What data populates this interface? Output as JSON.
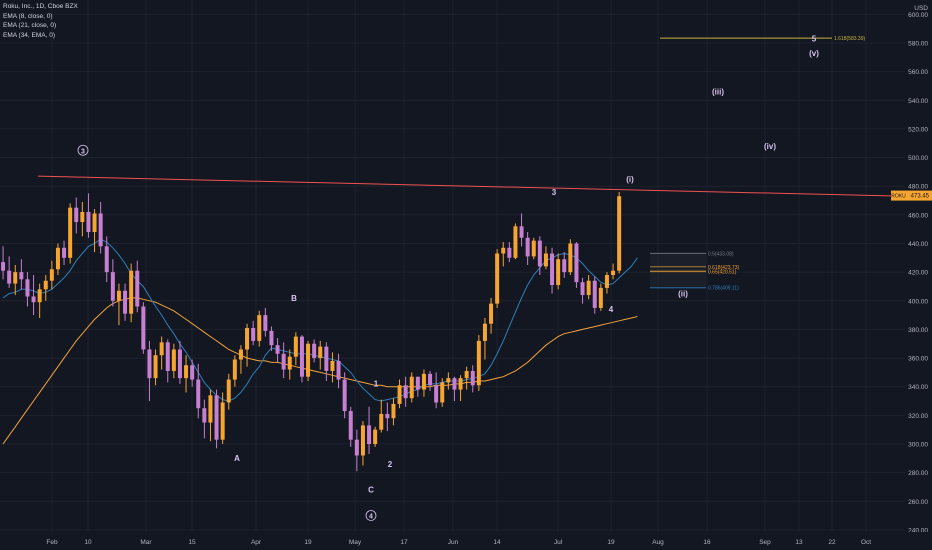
{
  "legend": {
    "title": "Roku, Inc., 1D, Cboe BZX",
    "ema1": "EMA (8, close, 0)",
    "ema2": "EMA (21, close, 0)",
    "ema3": "EMA (34, EMA, 0)"
  },
  "currency": "USD",
  "price_tag": {
    "symbol": "ROKU",
    "value": "473.45"
  },
  "colors": {
    "background": "#131722",
    "grid": "#1e222d",
    "up": "#f7a531",
    "down": "#c77fd1",
    "ema_fast": "#2f7fb8",
    "ema_slow": "#f2a33a",
    "trendline": "#ef5350",
    "fib_yellow": "#c9b33a",
    "fib_blue": "#2f7fb8",
    "wave_text": "#d7c4ef"
  },
  "chart_data": {
    "type": "candlestick",
    "title": "Roku, Inc., 1D, Cboe BZX",
    "y_axis": {
      "unit": "USD",
      "range": [
        230,
        610
      ],
      "ticks": [
        240,
        260,
        280,
        300,
        320,
        340,
        360,
        380,
        400,
        420,
        440,
        460,
        480,
        500,
        520,
        540,
        560,
        580,
        600
      ],
      "side": "right"
    },
    "x_axis": {
      "labels": [
        "Feb",
        "10",
        "Mar",
        "15",
        "Apr",
        "19",
        "May",
        "17",
        "Jun",
        "14",
        "Jul",
        "19",
        "Aug",
        "16",
        "Sep",
        "13",
        "22",
        "Oct"
      ]
    },
    "candles": [
      [
        427,
        438,
        415,
        421
      ],
      [
        421,
        431,
        409,
        412
      ],
      [
        412,
        425,
        404,
        420
      ],
      [
        420,
        429,
        408,
        415
      ],
      [
        415,
        420,
        396,
        403
      ],
      [
        403,
        418,
        390,
        399
      ],
      [
        399,
        412,
        388,
        408
      ],
      [
        408,
        418,
        400,
        414
      ],
      [
        414,
        428,
        408,
        422
      ],
      [
        422,
        440,
        418,
        437
      ],
      [
        437,
        442,
        425,
        430
      ],
      [
        430,
        468,
        426,
        465
      ],
      [
        465,
        472,
        447,
        455
      ],
      [
        455,
        469,
        445,
        462
      ],
      [
        462,
        475,
        444,
        448
      ],
      [
        448,
        464,
        434,
        461
      ],
      [
        461,
        469,
        433,
        438
      ],
      [
        438,
        445,
        413,
        420
      ],
      [
        420,
        429,
        396,
        400
      ],
      [
        400,
        412,
        383,
        407
      ],
      [
        407,
        412,
        386,
        391
      ],
      [
        391,
        426,
        385,
        421
      ],
      [
        421,
        428,
        392,
        396
      ],
      [
        396,
        399,
        363,
        366
      ],
      [
        366,
        372,
        330,
        346
      ],
      [
        346,
        366,
        341,
        362
      ],
      [
        362,
        375,
        352,
        371
      ],
      [
        371,
        373,
        343,
        351
      ],
      [
        351,
        370,
        346,
        366
      ],
      [
        366,
        372,
        342,
        346
      ],
      [
        346,
        362,
        336,
        355
      ],
      [
        355,
        359,
        340,
        345
      ],
      [
        345,
        356,
        318,
        325
      ],
      [
        325,
        331,
        304,
        315
      ],
      [
        315,
        338,
        302,
        334
      ],
      [
        334,
        338,
        297,
        303
      ],
      [
        303,
        336,
        300,
        329
      ],
      [
        329,
        349,
        324,
        345
      ],
      [
        345,
        362,
        340,
        359
      ],
      [
        359,
        369,
        349,
        366
      ],
      [
        366,
        384,
        354,
        381
      ],
      [
        381,
        386,
        369,
        372
      ],
      [
        372,
        393,
        368,
        390
      ],
      [
        390,
        395,
        375,
        379
      ],
      [
        379,
        382,
        365,
        369
      ],
      [
        369,
        374,
        357,
        363
      ],
      [
        363,
        371,
        346,
        352
      ],
      [
        352,
        366,
        345,
        361
      ],
      [
        361,
        378,
        355,
        375
      ],
      [
        375,
        376,
        343,
        347
      ],
      [
        347,
        372,
        344,
        370
      ],
      [
        370,
        373,
        357,
        360
      ],
      [
        360,
        372,
        352,
        368
      ],
      [
        368,
        371,
        344,
        351
      ],
      [
        351,
        364,
        343,
        358
      ],
      [
        358,
        363,
        339,
        345
      ],
      [
        345,
        350,
        318,
        323
      ],
      [
        323,
        326,
        298,
        303
      ],
      [
        303,
        310,
        281,
        292
      ],
      [
        292,
        316,
        285,
        313
      ],
      [
        313,
        326,
        293,
        300
      ],
      [
        300,
        312,
        298,
        310
      ],
      [
        310,
        331,
        308,
        321
      ],
      [
        321,
        329,
        309,
        318
      ],
      [
        318,
        332,
        313,
        328
      ],
      [
        328,
        345,
        325,
        341
      ],
      [
        341,
        347,
        326,
        332
      ],
      [
        332,
        350,
        329,
        347
      ],
      [
        347,
        344,
        333,
        338
      ],
      [
        338,
        352,
        333,
        349
      ],
      [
        349,
        351,
        337,
        341
      ],
      [
        341,
        350,
        325,
        329
      ],
      [
        329,
        346,
        326,
        343
      ],
      [
        343,
        350,
        338,
        346
      ],
      [
        346,
        347,
        330,
        338
      ],
      [
        338,
        348,
        330,
        346
      ],
      [
        346,
        354,
        338,
        351
      ],
      [
        351,
        355,
        336,
        341
      ],
      [
        341,
        376,
        337,
        372
      ],
      [
        372,
        388,
        359,
        384
      ],
      [
        384,
        402,
        377,
        398
      ],
      [
        398,
        436,
        395,
        433
      ],
      [
        433,
        441,
        424,
        437
      ],
      [
        437,
        441,
        427,
        430
      ],
      [
        430,
        454,
        429,
        452
      ],
      [
        452,
        461,
        438,
        444
      ],
      [
        444,
        448,
        425,
        431
      ],
      [
        431,
        444,
        429,
        442
      ],
      [
        442,
        445,
        418,
        424
      ],
      [
        424,
        438,
        422,
        433
      ],
      [
        433,
        437,
        405,
        411
      ],
      [
        411,
        433,
        408,
        429
      ],
      [
        429,
        434,
        416,
        420
      ],
      [
        420,
        443,
        418,
        440
      ],
      [
        440,
        441,
        409,
        413
      ],
      [
        413,
        416,
        398,
        404
      ],
      [
        404,
        418,
        401,
        414
      ],
      [
        414,
        417,
        391,
        395
      ],
      [
        395,
        412,
        393,
        409
      ],
      [
        409,
        420,
        405,
        418
      ],
      [
        418,
        426,
        415,
        421
      ],
      [
        421,
        476,
        419,
        473
      ]
    ],
    "ema_fast": [
      402,
      405,
      406,
      408,
      408,
      407,
      405,
      406,
      408,
      412,
      416,
      421,
      428,
      433,
      438,
      440,
      443,
      441,
      437,
      432,
      426,
      419,
      414,
      410,
      403,
      396,
      390,
      383,
      377,
      370,
      364,
      357,
      350,
      343,
      338,
      334,
      331,
      330,
      332,
      336,
      342,
      349,
      354,
      362,
      367,
      366,
      365,
      364,
      363,
      363,
      363,
      362,
      361,
      360,
      359,
      358,
      354,
      350,
      344,
      339,
      335,
      331,
      330,
      331,
      332,
      333,
      335,
      337,
      338,
      341,
      342,
      342,
      343,
      344,
      344,
      344,
      345,
      346,
      347,
      349,
      355,
      363,
      372,
      382,
      392,
      402,
      411,
      418,
      423,
      428,
      430,
      432,
      433,
      432,
      430,
      426,
      421,
      417,
      413,
      411,
      412,
      416,
      420,
      424,
      430
    ],
    "ema_slow": [
      300,
      306,
      312,
      318,
      324,
      330,
      336,
      342,
      348,
      354,
      360,
      366,
      372,
      377,
      382,
      387,
      391,
      395,
      398,
      400,
      401,
      402,
      402,
      401,
      400,
      399,
      397,
      395,
      393,
      390,
      387,
      384,
      381,
      378,
      375,
      372,
      369,
      366,
      364,
      362,
      360,
      359,
      358,
      358,
      357,
      357,
      356,
      355,
      354,
      353,
      352,
      351,
      350,
      349,
      348,
      347,
      346,
      345,
      344,
      343,
      342,
      341,
      341,
      340,
      340,
      340,
      340,
      340,
      340,
      340,
      340,
      341,
      341,
      341,
      342,
      342,
      343,
      343,
      344,
      344,
      345,
      346,
      347,
      349,
      351,
      354,
      357,
      361,
      365,
      369,
      372,
      375,
      377,
      378,
      379,
      380,
      381,
      382,
      383,
      384,
      385,
      386,
      387,
      388,
      389
    ],
    "trendline": {
      "from": {
        "bar": 0,
        "price": 487
      },
      "to": {
        "bar": 150,
        "price": 473
      }
    },
    "fib_levels": [
      {
        "label": "1.618(583.39)",
        "value": 583.39,
        "color": "#c9b33a"
      },
      {
        "label": "0.5(433.08)",
        "value": 433.08,
        "color": "#787b86"
      },
      {
        "label": "0.618(423.73)",
        "value": 423.73,
        "color": "#f2a33a"
      },
      {
        "label": "0.65(420.51)",
        "value": 420.51,
        "color": "#f7a531"
      },
      {
        "label": "0.786(409.11)",
        "value": 409.11,
        "color": "#2f7fb8"
      }
    ],
    "wave_labels": [
      {
        "text": "3",
        "bar": 14,
        "price": 503,
        "circled": true
      },
      {
        "text": "A",
        "bar": 36,
        "price": 288
      },
      {
        "text": "B",
        "bar": 44,
        "price": 400
      },
      {
        "text": "1",
        "bar": 59,
        "price": 340
      },
      {
        "text": "2",
        "bar": 63,
        "price": 284
      },
      {
        "text": "C",
        "bar": 60,
        "price": 266
      },
      {
        "text": "4",
        "bar": 60,
        "price": 248,
        "circled": true
      },
      {
        "text": "3",
        "bar": 90,
        "price": 474
      },
      {
        "text": "4",
        "bar": 99,
        "price": 392
      },
      {
        "text": "(i)",
        "bar": 103,
        "price": 483
      },
      {
        "text": "(ii)",
        "bar": 111,
        "price": 403
      },
      {
        "text": "(iii)",
        "bar": 117,
        "price": 544
      },
      {
        "text": "(iv)",
        "bar": 126,
        "price": 506
      },
      {
        "text": "(v)",
        "bar": 133,
        "price": 571
      },
      {
        "text": "5",
        "bar": 133,
        "price": 581
      }
    ]
  }
}
